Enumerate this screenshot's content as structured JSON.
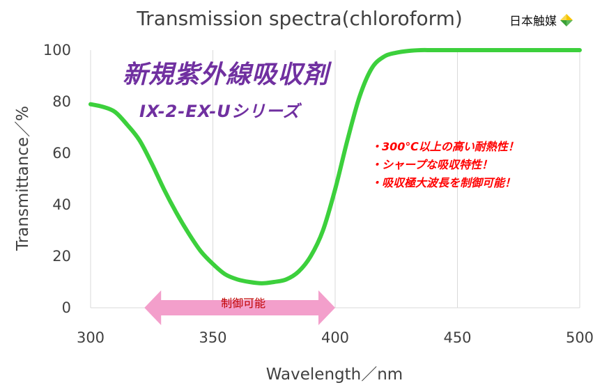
{
  "header": {
    "title": "Transmission spectra(chloroform)",
    "company": "日本触媒"
  },
  "product": {
    "name": "新規紫外線吸収剤",
    "series": "IX-2-EX-Uシリーズ"
  },
  "features": [
    "・300℃以上の高い耐熱性！",
    "・シャープな吸収特性！",
    "・吸収極大波長を制御可能！"
  ],
  "colors": {
    "curve": "#3cd03c",
    "purple": "#7030a0",
    "red": "#ff0000",
    "arrow": "#f39fcb",
    "logo_yellow": "#f5c400",
    "logo_green": "#3aa035"
  },
  "chart_data": {
    "type": "line",
    "title": "Transmission spectra(chloroform)",
    "xlabel": "Wavelength／nm",
    "ylabel": "Transmittance／%",
    "xlim": [
      300,
      500
    ],
    "ylim": [
      0,
      100
    ],
    "xticks": [
      300,
      350,
      400,
      450,
      500
    ],
    "yticks": [
      0,
      20,
      40,
      60,
      80,
      100
    ],
    "grid": "vertical",
    "series": [
      {
        "name": "IX-2-EX-U",
        "x": [
          300,
          305,
          310,
          315,
          320,
          325,
          330,
          335,
          340,
          345,
          350,
          355,
          360,
          365,
          370,
          375,
          380,
          385,
          390,
          395,
          400,
          405,
          410,
          415,
          420,
          425,
          430,
          435,
          440,
          450,
          460,
          480,
          500
        ],
        "y": [
          79,
          78,
          76,
          71,
          65,
          56,
          46,
          37,
          29,
          22,
          17,
          13,
          11,
          10,
          9.5,
          10,
          11,
          14,
          20,
          30,
          46,
          65,
          82,
          93,
          97.5,
          99,
          99.7,
          100,
          100,
          100,
          100,
          100,
          100
        ]
      }
    ],
    "annotation": {
      "label": "制御可能",
      "x_range": [
        322,
        400
      ],
      "y": 0
    }
  }
}
